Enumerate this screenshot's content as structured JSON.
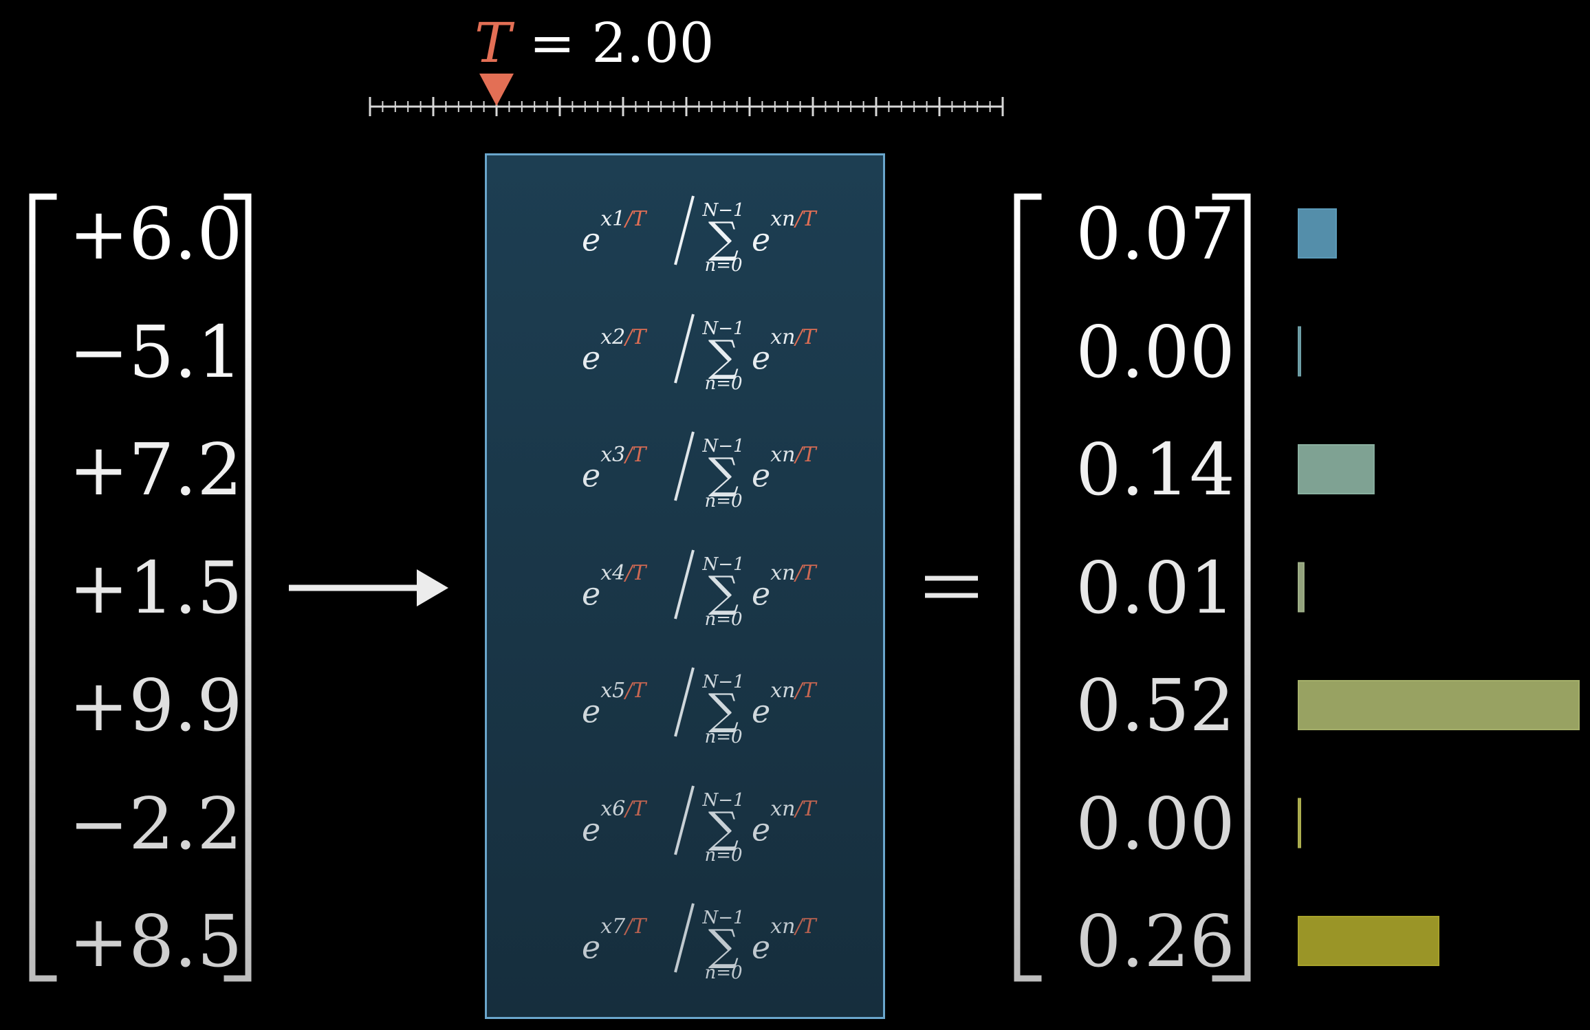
{
  "temperature": {
    "symbol": "T",
    "equals": "=",
    "value": "2.00",
    "slider_fraction": 0.2
  },
  "inputs": [
    "+6.0",
    "−5.1",
    "+7.2",
    "+1.5",
    "+9.9",
    "−2.2",
    "+8.5"
  ],
  "formula": {
    "base": "e",
    "numerator_subscripts": [
      "x1",
      "x2",
      "x3",
      "x4",
      "x5",
      "x6",
      "x7"
    ],
    "over_T": "/T",
    "sum_upper": "N−1",
    "sum_lower": "n=0",
    "sum_symbol": "∑",
    "denominator_exponent": "xn"
  },
  "equals_sign": "=",
  "outputs": [
    "0.07",
    "0.00",
    "0.14",
    "0.01",
    "0.52",
    "0.00",
    "0.26"
  ],
  "bar_colors": [
    "#5b9ab8",
    "#6fa0a8",
    "#8ab0a0",
    "#9fb088",
    "#a5b06a",
    "#aeb050",
    "#a7a22a"
  ],
  "colors": {
    "accent": "#e36f55",
    "box_border": "#6aa6cc",
    "box_fill": "#1d3e52"
  }
}
